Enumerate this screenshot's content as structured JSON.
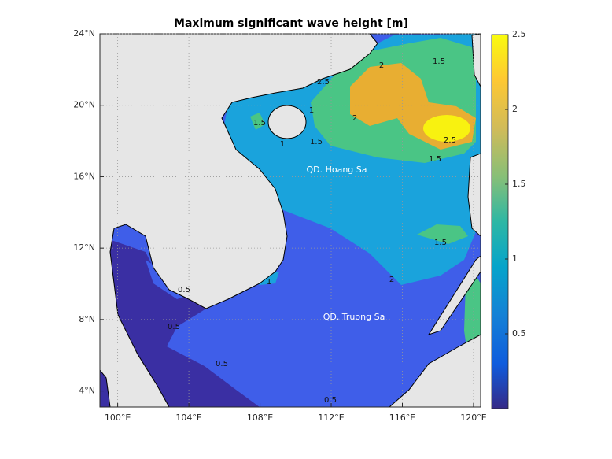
{
  "chart_data": {
    "type": "map",
    "title": "Maximum significant wave height [m]",
    "xlim": [
      99,
      120.4
    ],
    "xticks": [
      {
        "value": 100,
        "label": "100°E"
      },
      {
        "value": 104,
        "label": "104°E"
      },
      {
        "value": 108,
        "label": "108°E"
      },
      {
        "value": 112,
        "label": "112°E"
      },
      {
        "value": 116,
        "label": "116°E"
      },
      {
        "value": 120,
        "label": "120°E"
      }
    ],
    "ylim": [
      3.1,
      24
    ],
    "yticks": [
      {
        "value": 4,
        "label": "4°N"
      },
      {
        "value": 8,
        "label": "8°N"
      },
      {
        "value": 12,
        "label": "12°N"
      },
      {
        "value": 16,
        "label": "16°N"
      },
      {
        "value": 20,
        "label": "20°N"
      },
      {
        "value": 24,
        "label": "24°N"
      }
    ],
    "grid": true,
    "colorbar": {
      "lim": [
        0,
        2.5
      ],
      "ticks": [
        0.5,
        1,
        1.5,
        2,
        2.5
      ]
    },
    "place_labels": [
      "QD. Hoang Sa",
      "QD. Truong Sa"
    ],
    "contour_labels": [
      "1.5",
      "2",
      "2.5",
      "2",
      "1.5",
      "1",
      "1.5",
      "2.5",
      "1.5",
      "1",
      "1.5",
      "2",
      "1",
      "0.5",
      "0.5",
      "0.5",
      "0.5"
    ]
  }
}
